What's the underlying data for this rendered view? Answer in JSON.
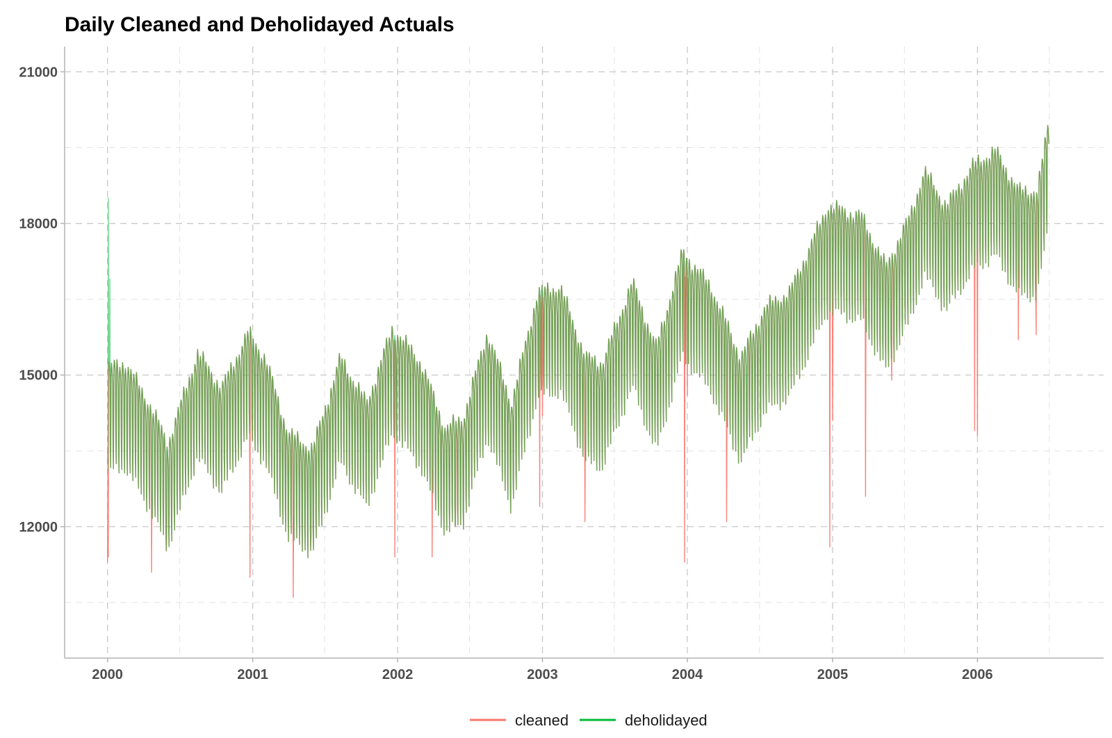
{
  "chart_data": {
    "type": "line",
    "title": "Daily Cleaned and Deholidayed Actuals",
    "xlabel": "",
    "ylabel": "",
    "x_ticks": [
      "2000",
      "2001",
      "2002",
      "2003",
      "2004",
      "2005",
      "2006"
    ],
    "y_ticks": [
      "12000",
      "15000",
      "18000",
      "21000"
    ],
    "xlim": [
      "1999-09-15",
      "2006-11-15"
    ],
    "ylim": [
      9400,
      21500
    ],
    "x_range": [
      "2000-01-01",
      "2006-06-30"
    ],
    "grid": true,
    "legend_position": "bottom",
    "series": [
      {
        "name": "cleaned",
        "color": "#f8766d",
        "trend": [
          [
            "2000-01-01",
            14400
          ],
          [
            "2000-02-15",
            14500
          ],
          [
            "2000-04-15",
            13700
          ],
          [
            "2000-06-01",
            12900
          ],
          [
            "2000-08-15",
            14700
          ],
          [
            "2000-10-15",
            14000
          ],
          [
            "2000-12-20",
            15100
          ],
          [
            "2001-02-01",
            14600
          ],
          [
            "2001-04-01",
            13100
          ],
          [
            "2001-06-01",
            12800
          ],
          [
            "2001-08-10",
            14600
          ],
          [
            "2001-10-15",
            13700
          ],
          [
            "2001-12-20",
            15200
          ],
          [
            "2002-03-01",
            14500
          ],
          [
            "2002-05-01",
            13200
          ],
          [
            "2002-06-15",
            13400
          ],
          [
            "2002-08-15",
            15100
          ],
          [
            "2002-10-15",
            13700
          ],
          [
            "2002-12-20",
            15900
          ],
          [
            "2003-02-15",
            16000
          ],
          [
            "2003-04-20",
            14600
          ],
          [
            "2003-06-01",
            14500
          ],
          [
            "2003-08-15",
            16100
          ],
          [
            "2003-10-15",
            14800
          ],
          [
            "2003-12-20",
            16700
          ],
          [
            "2004-03-01",
            16000
          ],
          [
            "2004-05-15",
            14600
          ],
          [
            "2004-07-15",
            15600
          ],
          [
            "2004-09-15",
            15900
          ],
          [
            "2004-12-20",
            17600
          ],
          [
            "2005-03-15",
            17400
          ],
          [
            "2005-05-15",
            16400
          ],
          [
            "2005-07-15",
            17400
          ],
          [
            "2005-08-20",
            18300
          ],
          [
            "2005-10-15",
            17600
          ],
          [
            "2005-12-20",
            18400
          ],
          [
            "2006-02-15",
            18700
          ],
          [
            "2006-04-15",
            17900
          ],
          [
            "2006-06-01",
            17900
          ],
          [
            "2006-06-30",
            19300
          ]
        ],
        "weekly_amplitude": 1400,
        "holiday_dips": [
          [
            "2000-01-01",
            11300
          ],
          [
            "2000-01-03",
            11400
          ],
          [
            "2000-04-21",
            11100
          ],
          [
            "2000-05-29",
            11700
          ],
          [
            "2000-12-25",
            11000
          ],
          [
            "2001-01-01",
            14500
          ],
          [
            "2001-04-13",
            10600
          ],
          [
            "2001-05-28",
            11800
          ],
          [
            "2001-12-25",
            11400
          ],
          [
            "2002-03-29",
            11400
          ],
          [
            "2002-05-27",
            12000
          ],
          [
            "2002-12-25",
            12400
          ],
          [
            "2003-01-01",
            14200
          ],
          [
            "2003-04-18",
            12100
          ],
          [
            "2003-12-25",
            11300
          ],
          [
            "2004-01-01",
            14600
          ],
          [
            "2004-04-09",
            12100
          ],
          [
            "2004-05-31",
            13700
          ],
          [
            "2004-12-25",
            11600
          ],
          [
            "2005-01-01",
            14100
          ],
          [
            "2005-03-25",
            12600
          ],
          [
            "2005-05-30",
            14900
          ],
          [
            "2005-12-25",
            13900
          ],
          [
            "2006-01-01",
            13800
          ],
          [
            "2006-04-14",
            15700
          ],
          [
            "2006-05-29",
            15800
          ]
        ]
      },
      {
        "name": "deholidayed",
        "color": "#00ba38",
        "trend": [
          [
            "2000-01-01",
            14400
          ],
          [
            "2000-02-15",
            14500
          ],
          [
            "2000-04-15",
            13700
          ],
          [
            "2000-06-01",
            12900
          ],
          [
            "2000-08-15",
            14700
          ],
          [
            "2000-10-15",
            14000
          ],
          [
            "2000-12-20",
            15100
          ],
          [
            "2001-02-01",
            14600
          ],
          [
            "2001-04-01",
            13100
          ],
          [
            "2001-06-01",
            12800
          ],
          [
            "2001-08-10",
            14600
          ],
          [
            "2001-10-15",
            13700
          ],
          [
            "2001-12-20",
            15200
          ],
          [
            "2002-03-01",
            14500
          ],
          [
            "2002-05-01",
            13200
          ],
          [
            "2002-06-15",
            13400
          ],
          [
            "2002-08-15",
            15100
          ],
          [
            "2002-10-15",
            13700
          ],
          [
            "2002-12-20",
            15900
          ],
          [
            "2003-02-15",
            16000
          ],
          [
            "2003-04-20",
            14600
          ],
          [
            "2003-06-01",
            14500
          ],
          [
            "2003-08-15",
            16100
          ],
          [
            "2003-10-15",
            14800
          ],
          [
            "2003-12-20",
            16700
          ],
          [
            "2004-03-01",
            16000
          ],
          [
            "2004-05-15",
            14600
          ],
          [
            "2004-07-15",
            15600
          ],
          [
            "2004-09-15",
            15900
          ],
          [
            "2004-12-20",
            17600
          ],
          [
            "2005-03-15",
            17400
          ],
          [
            "2005-05-15",
            16400
          ],
          [
            "2005-07-15",
            17400
          ],
          [
            "2005-08-20",
            18300
          ],
          [
            "2005-10-15",
            17600
          ],
          [
            "2005-12-20",
            18400
          ],
          [
            "2006-02-15",
            18700
          ],
          [
            "2006-04-15",
            17900
          ],
          [
            "2006-06-01",
            17900
          ],
          [
            "2006-06-30",
            19300
          ]
        ],
        "weekly_amplitude": 1400,
        "peaks": [
          [
            "2000-01-03",
            18500
          ],
          [
            "2000-01-07",
            16900
          ]
        ]
      }
    ]
  }
}
